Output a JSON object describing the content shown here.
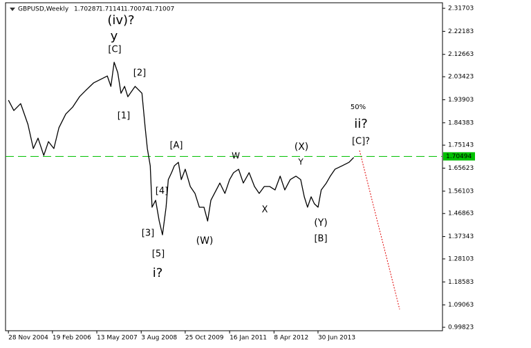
{
  "chart_data": {
    "type": "line",
    "title": "GBPUSD,Weekly",
    "ohlc": [
      1.70287,
      1.71141,
      1.70074,
      1.71007
    ],
    "xlim": [
      2004.83,
      2016.94
    ],
    "ylim": [
      0.984,
      2.34
    ],
    "xticks": [
      {
        "value": 2004.91,
        "label": "28 Nov 2004"
      },
      {
        "value": 2006.13,
        "label": "19 Feb 2006"
      },
      {
        "value": 2007.36,
        "label": "13 May 2007"
      },
      {
        "value": 2008.59,
        "label": "3 Aug 2008"
      },
      {
        "value": 2009.81,
        "label": "25 Oct 2009"
      },
      {
        "value": 2011.04,
        "label": "16 Jan 2011"
      },
      {
        "value": 2012.27,
        "label": "8 Apr 2012"
      },
      {
        "value": 2013.49,
        "label": "30 Jun 2013"
      }
    ],
    "yticks": [
      2.31703,
      2.22183,
      2.12663,
      2.03423,
      1.93903,
      1.84383,
      1.75143,
      1.65623,
      1.56103,
      1.46863,
      1.37343,
      1.28103,
      1.18583,
      1.09063,
      0.99823
    ],
    "price_label": 1.70494,
    "price_color": "#00c000",
    "series": [
      {
        "name": "GBPUSD",
        "color": "#000000",
        "x": [
          2004.91,
          2005.06,
          2005.25,
          2005.45,
          2005.6,
          2005.73,
          2005.89,
          2006.02,
          2006.17,
          2006.31,
          2006.5,
          2006.69,
          2006.88,
          2007.07,
          2007.27,
          2007.46,
          2007.65,
          2007.75,
          2007.84,
          2007.94,
          2008.03,
          2008.13,
          2008.22,
          2008.42,
          2008.61,
          2008.7,
          2008.76,
          2008.84,
          2008.89,
          2008.99,
          2009.09,
          2009.18,
          2009.28,
          2009.34,
          2009.43,
          2009.51,
          2009.62,
          2009.7,
          2009.81,
          2009.95,
          2010.08,
          2010.2,
          2010.33,
          2010.43,
          2010.52,
          2010.62,
          2010.77,
          2010.91,
          2011.04,
          2011.15,
          2011.29,
          2011.42,
          2011.58,
          2011.73,
          2011.86,
          2012.0,
          2012.15,
          2012.3,
          2012.44,
          2012.57,
          2012.72,
          2012.88,
          2013.01,
          2013.11,
          2013.2,
          2013.3,
          2013.39,
          2013.49,
          2013.58,
          2013.72,
          2013.83,
          2013.96,
          2014.16,
          2014.35,
          2014.48
        ],
        "values": [
          1.9373,
          1.8945,
          1.923,
          1.8374,
          1.7375,
          1.7803,
          1.7089,
          1.766,
          1.7375,
          1.8231,
          1.8802,
          1.9087,
          1.9516,
          1.9801,
          2.0087,
          2.0229,
          2.0372,
          1.9944,
          2.0943,
          2.0515,
          1.9658,
          1.9944,
          1.9516,
          1.9944,
          1.9658,
          1.8231,
          1.7375,
          1.6661,
          1.4948,
          1.5233,
          1.4377,
          1.3806,
          1.4948,
          1.609,
          1.6375,
          1.6661,
          1.6803,
          1.609,
          1.6518,
          1.5804,
          1.5519,
          1.4948,
          1.4948,
          1.4377,
          1.5233,
          1.5519,
          1.5947,
          1.5519,
          1.609,
          1.6375,
          1.6518,
          1.5947,
          1.6375,
          1.5804,
          1.5519,
          1.5804,
          1.5804,
          1.5662,
          1.6233,
          1.5662,
          1.609,
          1.6233,
          1.609,
          1.5377,
          1.4948,
          1.5377,
          1.5091,
          1.4948,
          1.5662,
          1.5947,
          1.6233,
          1.6518,
          1.6661,
          1.6803,
          1.7003
        ]
      }
    ],
    "annotations": [
      {
        "text": "(iv)?",
        "color": "#1a1a80"
      },
      {
        "text": "y",
        "color": "#8b0000"
      },
      {
        "text": "[C]",
        "color": "#2e8b2e"
      },
      {
        "text": "[2]",
        "color": "#2e8b2e"
      },
      {
        "text": "[1]",
        "color": "#2e8b2e"
      },
      {
        "text": "[A]",
        "color": "#2e8b2e"
      },
      {
        "text": "W",
        "color": "#b03030"
      },
      {
        "text": "(X)",
        "color": "#1a1a80"
      },
      {
        "text": "Y",
        "color": "#b03030"
      },
      {
        "text": "[C]?",
        "color": "#2e8b2e"
      },
      {
        "text": "ii?",
        "color": "#8b0000"
      },
      {
        "text": "50%",
        "color": "#1a1a80"
      },
      {
        "text": "[4]",
        "color": "#2e8b2e"
      },
      {
        "text": "[3]",
        "color": "#2e8b2e"
      },
      {
        "text": "[5]",
        "color": "#2e8b2e"
      },
      {
        "text": "i?",
        "color": "#8b0000"
      },
      {
        "text": "(W)",
        "color": "#1a1a80"
      },
      {
        "text": "X",
        "color": "#b03030"
      },
      {
        "text": "(Y)",
        "color": "#1a1a80"
      },
      {
        "text": "[B]",
        "color": "#2e8b2e"
      }
    ]
  }
}
